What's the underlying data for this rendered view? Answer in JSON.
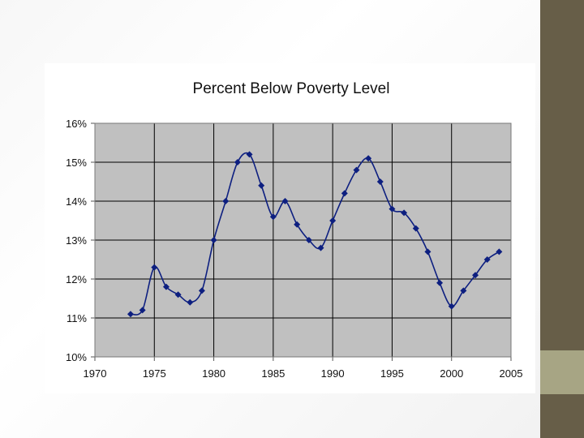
{
  "chart_data": {
    "type": "line",
    "title": "Percent Below Poverty Level",
    "xlabel": "",
    "ylabel": "",
    "xlim": [
      1970,
      2005
    ],
    "ylim": [
      10,
      16
    ],
    "x_ticks": [
      1970,
      1975,
      1980,
      1985,
      1990,
      1995,
      2000,
      2005
    ],
    "y_ticks": [
      10,
      11,
      12,
      13,
      14,
      15,
      16
    ],
    "y_tick_labels": [
      "10%",
      "11%",
      "12%",
      "13%",
      "14%",
      "15%",
      "16%"
    ],
    "grid": true,
    "legend": "none",
    "series": [
      {
        "x": [
          1973,
          1974,
          1975,
          1976,
          1977,
          1978,
          1979,
          1980,
          1981,
          1982,
          1983,
          1984,
          1985,
          1986,
          1987,
          1988,
          1989,
          1990,
          1991,
          1992,
          1993,
          1994,
          1995,
          1996,
          1997,
          1998,
          1999,
          2000,
          2001,
          2002,
          2003,
          2004
        ],
        "values": [
          11.1,
          11.2,
          12.3,
          11.8,
          11.6,
          11.4,
          11.7,
          13.0,
          14.0,
          15.0,
          15.2,
          14.4,
          13.6,
          14.0,
          13.4,
          13.0,
          12.8,
          13.5,
          14.2,
          14.8,
          15.1,
          14.5,
          13.8,
          13.7,
          13.3,
          12.7,
          11.9,
          11.3,
          11.7,
          12.1,
          12.5,
          12.7
        ]
      }
    ]
  },
  "colors": {
    "plot_background": "#c0c0c0",
    "series_line": "#0d1f80",
    "gridline": "#000000",
    "sidebar_dark": "#675e48",
    "sidebar_accent": "#a7a584"
  }
}
